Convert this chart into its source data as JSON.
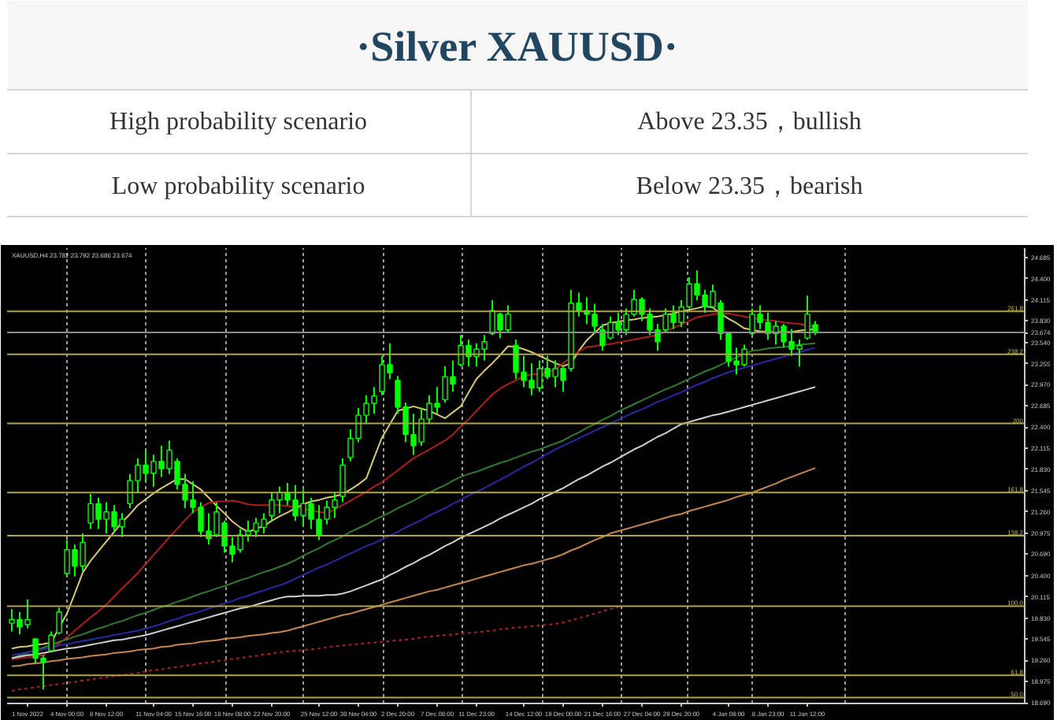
{
  "chart_data": {
    "type": "candlestick",
    "title": "·Silver XAUUSD·",
    "annotations": [
      "High probability scenario",
      "Above 23.35，bullish",
      "Low probability scenario",
      "Below 23.35，bearish",
      "XAUUSD,H4 23.782 23.792 23.686 23.674",
      {
        "text": "261.8",
        "y": 23.96
      },
      {
        "text": "238.2",
        "y": 23.38
      },
      {
        "text": "200",
        "y": 22.45
      },
      {
        "text": "161.8",
        "y": 21.52
      },
      {
        "text": "138.2",
        "y": 20.94
      },
      {
        "text": "100.0",
        "y": 19.99
      },
      {
        "text": "61.8",
        "y": 19.06
      },
      {
        "text": "50.0",
        "y": 18.76
      }
    ],
    "categories": [
      null,
      null,
      "1 Nov 2022",
      null,
      null,
      null,
      null,
      "4 Nov 00:00",
      null,
      null,
      null,
      null,
      "8 Nov 12:00",
      null,
      null,
      null,
      null,
      null,
      "11 Nov 04:00",
      null,
      null,
      null,
      null,
      "15 Nov 16:00",
      null,
      null,
      null,
      null,
      "18 Nov 08:00",
      null,
      null,
      null,
      null,
      "22 Nov 20:00",
      null,
      null,
      null,
      null,
      null,
      "25 Nov 12:00",
      null,
      null,
      null,
      null,
      "30 Nov 04:00",
      null,
      null,
      null,
      null,
      "2 Dec 20:00",
      null,
      null,
      null,
      null,
      "7 Dec 08:00",
      null,
      null,
      null,
      null,
      "11 Dec 23:00",
      null,
      null,
      null,
      null,
      null,
      "14 Dec 12:00",
      null,
      null,
      null,
      null,
      "19 Dec 00:00",
      null,
      null,
      null,
      null,
      "21 Dec 16:00",
      null,
      null,
      null,
      null,
      "27 Dec 04:00",
      null,
      null,
      null,
      null,
      "29 Dec 20:00",
      null,
      null,
      null,
      null,
      null,
      "4 Jan 08:00",
      null,
      null,
      null,
      null,
      "8 Jan 23:00",
      null,
      null,
      null,
      null,
      "11 Jan 12:00",
      null
    ],
    "ohlc": [
      [
        19.76,
        19.95,
        19.65,
        19.81
      ],
      [
        19.81,
        19.91,
        19.61,
        19.71
      ],
      [
        19.74,
        20.08,
        19.69,
        19.81
      ],
      [
        19.55,
        19.55,
        19.23,
        19.29
      ],
      [
        19.29,
        19.33,
        18.87,
        19.24
      ],
      [
        19.39,
        19.65,
        19.38,
        19.6
      ],
      [
        19.63,
        19.97,
        19.61,
        19.91
      ],
      [
        20.43,
        20.88,
        20.39,
        20.75
      ],
      [
        20.75,
        20.82,
        20.39,
        20.53
      ],
      [
        20.53,
        20.97,
        20.46,
        20.85
      ],
      [
        21.11,
        21.5,
        21.03,
        21.37
      ],
      [
        21.37,
        21.45,
        21.03,
        21.16
      ],
      [
        21.16,
        21.39,
        20.97,
        21.26
      ],
      [
        21.26,
        21.35,
        20.99,
        21.06
      ],
      [
        21.06,
        21.24,
        20.92,
        21.16
      ],
      [
        21.37,
        21.77,
        21.31,
        21.68
      ],
      [
        21.68,
        21.98,
        21.52,
        21.89
      ],
      [
        21.89,
        22.09,
        21.67,
        21.78
      ],
      [
        21.78,
        22.03,
        21.6,
        21.94
      ],
      [
        21.94,
        22.15,
        21.73,
        21.84
      ],
      [
        21.84,
        22.22,
        21.77,
        22.09
      ],
      [
        21.94,
        21.98,
        21.56,
        21.63
      ],
      [
        21.63,
        21.77,
        21.31,
        21.42
      ],
      [
        21.42,
        21.67,
        21.24,
        21.32
      ],
      [
        21.32,
        21.39,
        20.92,
        21.0
      ],
      [
        21.0,
        21.24,
        20.82,
        20.9
      ],
      [
        20.95,
        21.39,
        20.92,
        21.26
      ],
      [
        21.11,
        21.14,
        20.71,
        20.8
      ],
      [
        20.8,
        20.92,
        20.58,
        20.69
      ],
      [
        20.75,
        21.03,
        20.71,
        20.95
      ],
      [
        20.95,
        21.14,
        20.86,
        21.0
      ],
      [
        21.0,
        21.18,
        20.92,
        21.11
      ],
      [
        21.05,
        21.24,
        20.97,
        21.16
      ],
      [
        21.21,
        21.52,
        21.14,
        21.42
      ],
      [
        21.42,
        21.6,
        21.24,
        21.52
      ],
      [
        21.52,
        21.65,
        21.35,
        21.42
      ],
      [
        21.42,
        21.62,
        21.14,
        21.21
      ],
      [
        21.21,
        21.56,
        21.07,
        21.37
      ],
      [
        21.37,
        21.45,
        21.03,
        21.16
      ],
      [
        21.16,
        21.35,
        20.88,
        20.95
      ],
      [
        21.16,
        21.41,
        21.09,
        21.32
      ],
      [
        21.32,
        21.52,
        21.18,
        21.42
      ],
      [
        21.47,
        21.98,
        21.39,
        21.89
      ],
      [
        21.99,
        22.37,
        21.94,
        22.25
      ],
      [
        22.25,
        22.66,
        22.2,
        22.56
      ],
      [
        22.56,
        22.83,
        22.45,
        22.72
      ],
      [
        22.72,
        22.94,
        22.58,
        22.82
      ],
      [
        22.88,
        23.36,
        22.83,
        23.24
      ],
      [
        23.24,
        23.53,
        23.05,
        23.13
      ],
      [
        23.03,
        23.09,
        22.58,
        22.67
      ],
      [
        22.67,
        22.73,
        22.2,
        22.3
      ],
      [
        22.3,
        22.58,
        22.03,
        22.15
      ],
      [
        22.2,
        22.66,
        22.15,
        22.51
      ],
      [
        22.51,
        22.83,
        22.45,
        22.72
      ],
      [
        22.72,
        22.94,
        22.58,
        22.67
      ],
      [
        22.77,
        23.22,
        22.73,
        23.08
      ],
      [
        23.08,
        23.3,
        22.88,
        22.98
      ],
      [
        23.24,
        23.64,
        23.22,
        23.5
      ],
      [
        23.5,
        23.58,
        23.22,
        23.35
      ],
      [
        23.35,
        23.53,
        23.22,
        23.45
      ],
      [
        23.45,
        23.64,
        23.3,
        23.55
      ],
      [
        23.66,
        24.11,
        23.64,
        23.97
      ],
      [
        23.92,
        23.94,
        23.6,
        23.71
      ],
      [
        23.71,
        24.04,
        23.68,
        23.92
      ],
      [
        23.5,
        23.58,
        23.05,
        23.14
      ],
      [
        23.14,
        23.36,
        22.94,
        23.03
      ],
      [
        23.03,
        23.26,
        22.83,
        22.93
      ],
      [
        22.93,
        23.3,
        22.88,
        23.19
      ],
      [
        23.19,
        23.36,
        23.05,
        23.08
      ],
      [
        23.08,
        23.3,
        22.94,
        23.19
      ],
      [
        23.19,
        23.22,
        22.88,
        23.03
      ],
      [
        23.19,
        24.25,
        23.15,
        24.07
      ],
      [
        24.07,
        24.21,
        23.89,
        23.97
      ],
      [
        23.97,
        24.15,
        23.79,
        23.92
      ],
      [
        23.92,
        24.06,
        23.68,
        23.76
      ],
      [
        23.71,
        23.79,
        23.43,
        23.5
      ],
      [
        23.6,
        23.89,
        23.58,
        23.81
      ],
      [
        23.81,
        23.94,
        23.64,
        23.71
      ],
      [
        23.71,
        24.0,
        23.64,
        23.92
      ],
      [
        23.92,
        24.25,
        23.89,
        24.12
      ],
      [
        24.12,
        24.15,
        23.83,
        23.92
      ],
      [
        23.92,
        24.0,
        23.64,
        23.71
      ],
      [
        23.71,
        23.79,
        23.43,
        23.55
      ],
      [
        23.71,
        24.0,
        23.68,
        23.92
      ],
      [
        23.92,
        24.04,
        23.72,
        23.81
      ],
      [
        23.81,
        24.11,
        23.75,
        24.02
      ],
      [
        24.02,
        24.42,
        24.0,
        24.33
      ],
      [
        24.33,
        24.51,
        24.11,
        24.18
      ],
      [
        24.18,
        24.25,
        23.94,
        24.02
      ],
      [
        24.02,
        24.32,
        24.0,
        24.23
      ],
      [
        24.07,
        24.11,
        23.58,
        23.66
      ],
      [
        23.66,
        23.68,
        23.22,
        23.29
      ],
      [
        23.29,
        23.47,
        23.11,
        23.24
      ],
      [
        23.24,
        23.51,
        23.22,
        23.45
      ],
      [
        23.66,
        24.0,
        23.64,
        23.92
      ],
      [
        23.92,
        24.04,
        23.72,
        23.81
      ],
      [
        23.81,
        23.94,
        23.58,
        23.66
      ],
      [
        23.66,
        23.83,
        23.51,
        23.76
      ],
      [
        23.76,
        23.79,
        23.47,
        23.55
      ],
      [
        23.55,
        23.72,
        23.36,
        23.45
      ],
      [
        23.45,
        23.58,
        23.22,
        23.5
      ],
      [
        23.6,
        24.17,
        23.58,
        23.92
      ],
      [
        23.78,
        23.83,
        23.64,
        23.67
      ]
    ],
    "color": "#00ff00",
    "series": [
      {
        "type": "line",
        "color": "#d8c870",
        "values": [
          19.42,
          19.44,
          19.45,
          19.47,
          19.48,
          19.5,
          19.7,
          19.89,
          20.16,
          20.44,
          20.6,
          20.73,
          20.86,
          20.99,
          21.12,
          21.23,
          21.35,
          21.43,
          21.51,
          21.58,
          21.64,
          21.7,
          21.7,
          21.63,
          21.56,
          21.45,
          21.34,
          21.24,
          21.13,
          21.05,
          20.99,
          21.03,
          21.07,
          21.14,
          21.2,
          21.25,
          21.31,
          21.36,
          21.4,
          21.42,
          21.45,
          21.47,
          21.5,
          21.56,
          21.63,
          21.71,
          21.99,
          22.26,
          22.44,
          22.62,
          22.65,
          22.68,
          22.65,
          22.62,
          22.57,
          22.52,
          22.6,
          22.68,
          22.87,
          23.05,
          23.16,
          23.26,
          23.37,
          23.49,
          23.48,
          23.45,
          23.41,
          23.36,
          23.31,
          23.26,
          23.22,
          23.26,
          23.43,
          23.57,
          23.67,
          23.77,
          23.8,
          23.82,
          23.84,
          23.85,
          23.87,
          23.88,
          23.89,
          23.91,
          23.93,
          23.96,
          23.98,
          24.0,
          24.03,
          24.01,
          23.93,
          23.86,
          23.8,
          23.73,
          23.71,
          23.69,
          23.68,
          23.68,
          23.68,
          23.68,
          23.7,
          23.71,
          23.72
        ]
      },
      {
        "type": "line",
        "color": "#b01c1c",
        "values": [
          19.27,
          19.29,
          19.3,
          19.32,
          19.33,
          19.41,
          19.49,
          19.57,
          19.66,
          19.75,
          19.84,
          19.92,
          20.01,
          20.12,
          20.23,
          20.33,
          20.44,
          20.56,
          20.68,
          20.8,
          20.92,
          21.03,
          21.15,
          21.26,
          21.32,
          21.38,
          21.4,
          21.4,
          21.41,
          21.39,
          21.36,
          21.35,
          21.35,
          21.35,
          21.35,
          21.34,
          21.32,
          21.3,
          21.28,
          21.26,
          21.24,
          21.29,
          21.35,
          21.41,
          21.47,
          21.53,
          21.6,
          21.66,
          21.74,
          21.82,
          21.9,
          21.98,
          22.04,
          22.1,
          22.16,
          22.22,
          22.3,
          22.41,
          22.51,
          22.62,
          22.73,
          22.84,
          22.92,
          22.98,
          23.03,
          23.09,
          23.11,
          23.12,
          23.14,
          23.18,
          23.26,
          23.34,
          23.42,
          23.48,
          23.49,
          23.51,
          23.52,
          23.54,
          23.56,
          23.58,
          23.6,
          23.62,
          23.64,
          23.69,
          23.74,
          23.78,
          23.83,
          23.88,
          23.9,
          23.92,
          23.93,
          23.93,
          23.91,
          23.89,
          23.87,
          23.85,
          23.84,
          23.83,
          23.81,
          23.8,
          23.79,
          23.77,
          23.75
        ]
      },
      {
        "type": "line",
        "color": "#2f7a2f",
        "values": [
          19.29,
          19.33,
          19.36,
          19.4,
          19.43,
          19.47,
          19.51,
          19.54,
          19.58,
          19.61,
          19.65,
          19.69,
          19.72,
          19.76,
          19.79,
          19.83,
          19.87,
          19.9,
          19.94,
          19.98,
          20.01,
          20.05,
          20.08,
          20.12,
          20.16,
          20.19,
          20.23,
          20.26,
          20.3,
          20.34,
          20.37,
          20.41,
          20.45,
          20.48,
          20.52,
          20.56,
          20.61,
          20.67,
          20.72,
          20.77,
          20.83,
          20.88,
          20.93,
          20.99,
          21.04,
          21.09,
          21.15,
          21.2,
          21.25,
          21.31,
          21.36,
          21.41,
          21.47,
          21.52,
          21.57,
          21.62,
          21.68,
          21.73,
          21.77,
          21.8,
          21.84,
          21.88,
          21.92,
          21.95,
          21.99,
          22.03,
          22.07,
          22.1,
          22.14,
          22.18,
          22.22,
          22.28,
          22.33,
          22.39,
          22.44,
          22.5,
          22.55,
          22.61,
          22.66,
          22.71,
          22.76,
          22.81,
          22.86,
          22.91,
          22.95,
          23.0,
          23.05,
          23.1,
          23.15,
          23.19,
          23.24,
          23.29,
          23.34,
          23.38,
          23.43,
          23.44,
          23.46,
          23.47,
          23.48,
          23.49,
          23.51,
          23.52,
          23.53
        ]
      },
      {
        "type": "line",
        "color": "#2828a8",
        "values": [
          19.33,
          19.35,
          19.37,
          19.39,
          19.41,
          19.43,
          19.46,
          19.48,
          19.5,
          19.52,
          19.54,
          19.56,
          19.58,
          19.6,
          19.62,
          19.64,
          19.66,
          19.69,
          19.72,
          19.75,
          19.79,
          19.82,
          19.86,
          19.89,
          19.92,
          19.96,
          19.99,
          20.03,
          20.06,
          20.1,
          20.13,
          20.17,
          20.2,
          20.24,
          20.27,
          20.31,
          20.36,
          20.41,
          20.46,
          20.51,
          20.55,
          20.6,
          20.65,
          20.7,
          20.75,
          20.8,
          20.84,
          20.89,
          20.94,
          20.99,
          21.05,
          21.1,
          21.15,
          21.21,
          21.26,
          21.31,
          21.37,
          21.42,
          21.48,
          21.53,
          21.58,
          21.64,
          21.69,
          21.75,
          21.81,
          21.87,
          21.92,
          21.98,
          22.04,
          22.1,
          22.15,
          22.2,
          22.25,
          22.3,
          22.35,
          22.4,
          22.45,
          22.5,
          22.55,
          22.6,
          22.64,
          22.69,
          22.74,
          22.78,
          22.83,
          22.87,
          22.92,
          22.97,
          23.01,
          23.06,
          23.1,
          23.14,
          23.17,
          23.2,
          23.23,
          23.26,
          23.29,
          23.32,
          23.35,
          23.38,
          23.41,
          23.44,
          23.47
        ]
      },
      {
        "type": "line",
        "color": "#d0d0d0",
        "values": [
          19.29,
          19.31,
          19.33,
          19.34,
          19.36,
          19.38,
          19.4,
          19.42,
          19.43,
          19.45,
          19.47,
          19.49,
          19.51,
          19.53,
          19.54,
          19.56,
          19.58,
          19.6,
          19.63,
          19.66,
          19.69,
          19.72,
          19.75,
          19.78,
          19.81,
          19.84,
          19.87,
          19.9,
          19.93,
          19.96,
          19.98,
          20.01,
          20.04,
          20.07,
          20.1,
          20.12,
          20.12,
          20.13,
          20.13,
          20.13,
          20.14,
          20.14,
          20.16,
          20.19,
          20.23,
          20.27,
          20.31,
          20.35,
          20.41,
          20.46,
          20.52,
          20.57,
          20.63,
          20.68,
          20.74,
          20.8,
          20.85,
          20.91,
          20.96,
          21.01,
          21.06,
          21.11,
          21.17,
          21.22,
          21.27,
          21.32,
          21.37,
          21.43,
          21.48,
          21.53,
          21.58,
          21.64,
          21.7,
          21.75,
          21.81,
          21.87,
          21.92,
          21.98,
          22.04,
          22.1,
          22.15,
          22.21,
          22.27,
          22.32,
          22.38,
          22.44,
          22.47,
          22.5,
          22.53,
          22.56,
          22.58,
          22.61,
          22.64,
          22.67,
          22.7,
          22.73,
          22.76,
          22.79,
          22.82,
          22.85,
          22.88,
          22.91,
          22.94
        ]
      },
      {
        "type": "line",
        "color": "#c8874a",
        "values": [
          19.18,
          19.19,
          19.21,
          19.22,
          19.23,
          19.25,
          19.26,
          19.28,
          19.29,
          19.3,
          19.32,
          19.33,
          19.34,
          19.36,
          19.37,
          19.38,
          19.4,
          19.41,
          19.42,
          19.44,
          19.45,
          19.47,
          19.48,
          19.49,
          19.51,
          19.52,
          19.53,
          19.55,
          19.56,
          19.57,
          19.59,
          19.6,
          19.61,
          19.63,
          19.64,
          19.66,
          19.69,
          19.72,
          19.75,
          19.78,
          19.81,
          19.84,
          19.87,
          19.89,
          19.92,
          19.95,
          19.98,
          20.01,
          20.04,
          20.07,
          20.1,
          20.13,
          20.16,
          20.19,
          20.21,
          20.24,
          20.27,
          20.3,
          20.33,
          20.36,
          20.39,
          20.42,
          20.45,
          20.48,
          20.51,
          20.54,
          20.56,
          20.59,
          20.62,
          20.65,
          20.69,
          20.74,
          20.78,
          20.83,
          20.88,
          20.92,
          20.97,
          21.0,
          21.03,
          21.06,
          21.09,
          21.12,
          21.15,
          21.18,
          21.21,
          21.23,
          21.27,
          21.3,
          21.33,
          21.36,
          21.39,
          21.42,
          21.46,
          21.49,
          21.52,
          21.56,
          21.6,
          21.64,
          21.69,
          21.73,
          21.77,
          21.81,
          21.85
        ]
      },
      {
        "type": "line",
        "color": "#a82020",
        "line_style": "dotted",
        "values": [
          18.85,
          18.87,
          18.88,
          18.9,
          18.91,
          18.93,
          18.94,
          18.96,
          18.97,
          18.99,
          19.0,
          19.02,
          19.03,
          19.05,
          19.06,
          19.08,
          19.09,
          19.11,
          19.13,
          19.14,
          19.16,
          19.17,
          19.19,
          19.2,
          19.22,
          19.23,
          19.25,
          19.26,
          19.28,
          19.29,
          19.31,
          19.32,
          19.34,
          19.35,
          19.37,
          19.38,
          19.39,
          19.4,
          19.41,
          19.42,
          19.44,
          19.45,
          19.46,
          19.47,
          19.48,
          19.49,
          19.5,
          19.51,
          19.52,
          19.53,
          19.54,
          19.55,
          19.57,
          19.58,
          19.59,
          19.6,
          19.61,
          19.62,
          19.63,
          19.64,
          19.65,
          19.66,
          19.68,
          19.69,
          19.7,
          19.71,
          19.72,
          19.73,
          19.74,
          19.75,
          19.77,
          19.8,
          19.83,
          19.86,
          19.89,
          19.92,
          19.95,
          19.98,
          null,
          null,
          null,
          null,
          null,
          null,
          null,
          null,
          null,
          null,
          null,
          null,
          null,
          null,
          null,
          null,
          null,
          null,
          null,
          null,
          null,
          null,
          null,
          null,
          null
        ]
      }
    ],
    "ylim": [
      18.68,
      24.81
    ],
    "yticks": [
      24.685,
      {
        "value": 24.4,
        "label": "24.400"
      },
      24.115,
      {
        "value": 23.83,
        "label": "23.830"
      },
      23.674,
      {
        "value": 23.54,
        "label": "23.540"
      },
      23.255,
      {
        "value": 22.97,
        "label": "22.970"
      },
      22.685,
      {
        "value": 22.4,
        "label": "22.400"
      },
      22.115,
      {
        "value": 21.83,
        "label": "21.830"
      },
      21.545,
      {
        "value": 21.26,
        "label": "21.260"
      },
      20.975,
      {
        "value": 20.69,
        "label": "20.690"
      },
      {
        "value": 20.4,
        "label": "20.400"
      },
      20.115,
      {
        "value": 19.83,
        "label": "19.830"
      },
      19.545,
      {
        "value": 19.26,
        "label": "19.260"
      },
      18.975,
      {
        "value": 18.69,
        "label": "18.690"
      }
    ],
    "grid": "x",
    "ref_lines": [
      {
        "axis": "y",
        "value": 23.96,
        "color": "#b0a640"
      },
      {
        "axis": "y",
        "value": 23.674,
        "color": "#8c8c8c"
      },
      {
        "axis": "y",
        "value": 23.38,
        "color": "#b0a640"
      },
      {
        "axis": "y",
        "value": 22.45,
        "color": "#b0a640"
      },
      {
        "axis": "y",
        "value": 21.52,
        "color": "#b0a640"
      },
      {
        "axis": "y",
        "value": 20.94,
        "color": "#b0a640"
      },
      {
        "axis": "y",
        "value": 19.99,
        "color": "#b0a640"
      },
      {
        "axis": "y",
        "value": 19.06,
        "color": "#b0a640"
      },
      {
        "axis": "y",
        "value": 18.76,
        "color": "#b0a640"
      }
    ]
  }
}
